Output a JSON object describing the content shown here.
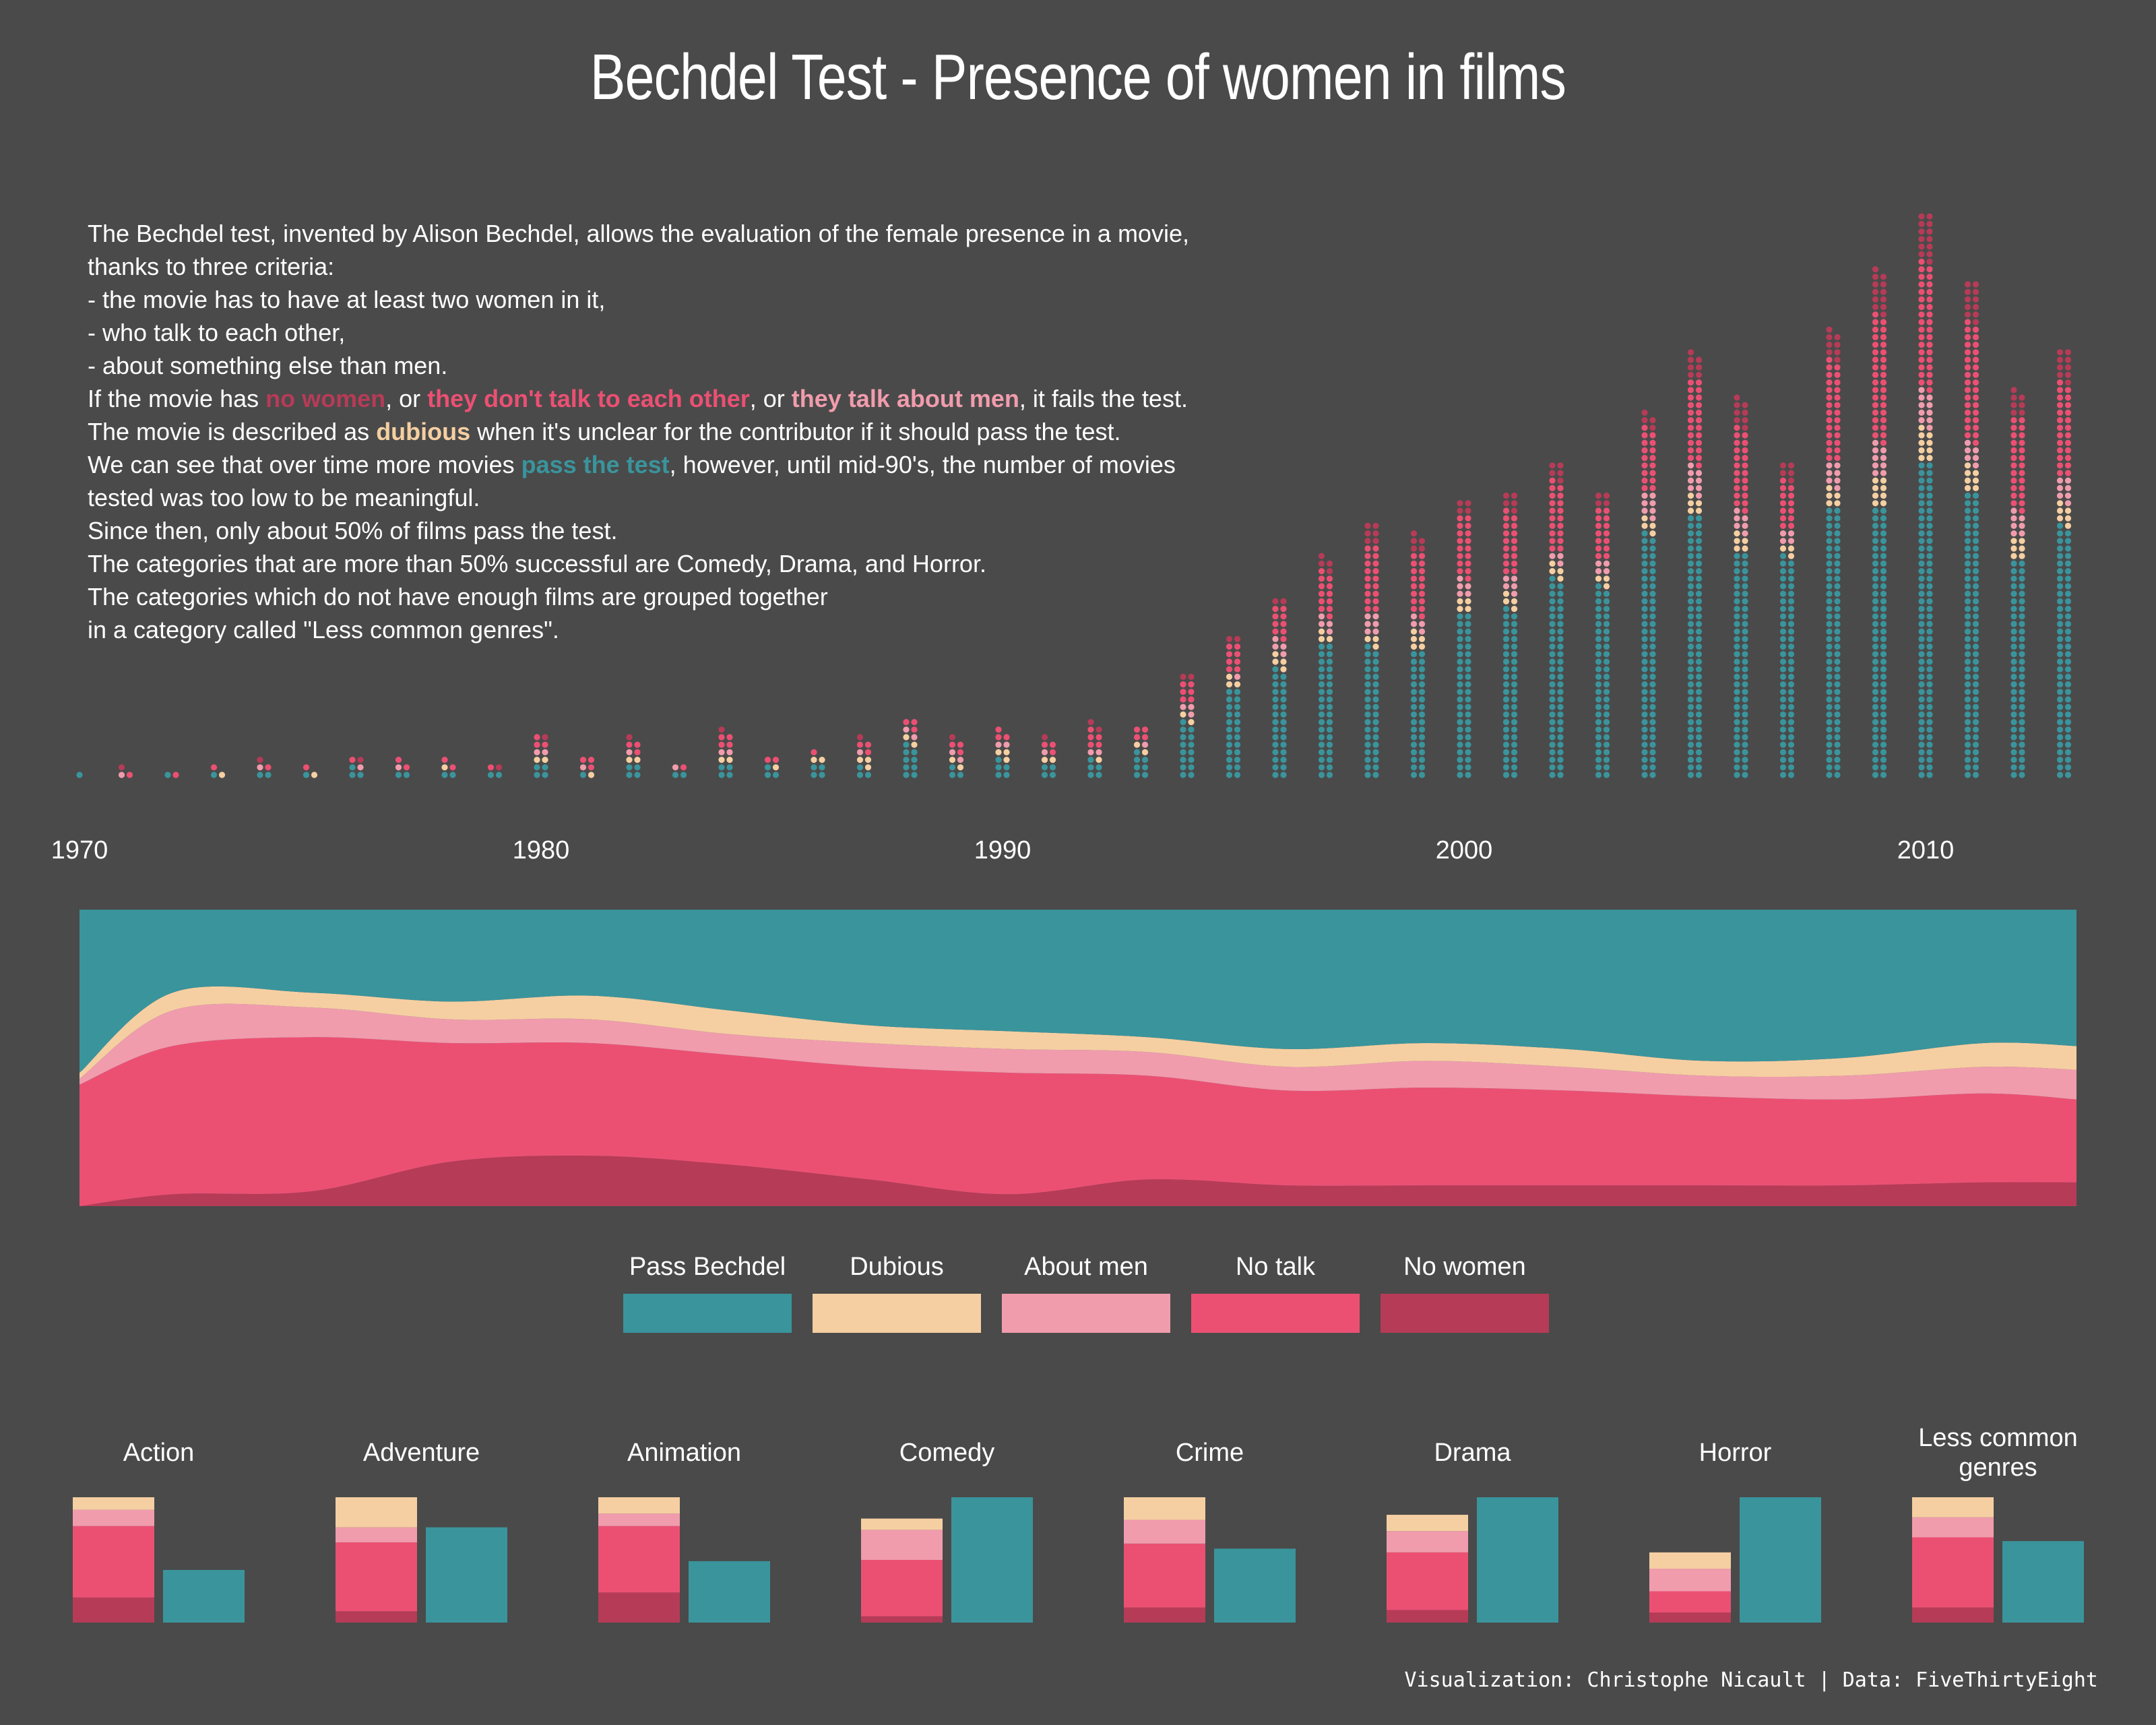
{
  "title": "Bechdel Test - Presence of women in films",
  "intro": {
    "l1": "The Bechdel test, invented by Alison Bechdel, allows the evaluation of the female presence in a movie,",
    "l2": "thanks to three criteria:",
    "l3": "- the movie has to have at least two women in it,",
    "l4": "- who talk to each other,",
    "l5": "- about something else than men.",
    "l6a": "If the movie has ",
    "l6_nowomen": "no women",
    "l6b": ", or ",
    "l6_notalk": "they don't talk to each other",
    "l6c": ", or ",
    "l6_men": "they talk about men",
    "l6d": ", it fails the test.",
    "l7a": "The movie is described as ",
    "l7_dubious": "dubious",
    "l7b": " when it's unclear for the contributor if it should pass the test.",
    "l8a": "We can see that over time more movies ",
    "l8_pass": "pass the test",
    "l8b": ", however, until mid-90's, the number of movies",
    "l9": "tested was too low to be meaningful.",
    "l10": "Since then, only about 50% of films pass the test.",
    "l11": "The categories that are more than 50% successful are Comedy, Drama, and Horror.",
    "l12": "The categories which do not have enough films are grouped together",
    "l13": "in a category called \"Less common genres\"."
  },
  "colors": {
    "background": "#4a4a4a",
    "pass": "#3a949c",
    "dubious": "#f5cfa2",
    "men": "#f09cad",
    "notalk": "#eb5073",
    "nowomen": "#b63b57"
  },
  "legend": [
    {
      "key": "pass",
      "label": "Pass Bechdel"
    },
    {
      "key": "dubious",
      "label": "Dubious"
    },
    {
      "key": "men",
      "label": "About men"
    },
    {
      "key": "notalk",
      "label": "No talk"
    },
    {
      "key": "nowomen",
      "label": "No women"
    }
  ],
  "chart_data": [
    {
      "type": "dot-column",
      "title": "",
      "x_label": "",
      "x_ticks": [
        "1970",
        "1980",
        "1990",
        "2000",
        "2010"
      ],
      "years": [
        1970,
        1971,
        1972,
        1973,
        1974,
        1975,
        1976,
        1977,
        1978,
        1979,
        1980,
        1981,
        1982,
        1983,
        1984,
        1985,
        1986,
        1987,
        1988,
        1989,
        1990,
        1991,
        1992,
        1993,
        1994,
        1995,
        1996,
        1997,
        1998,
        1999,
        2000,
        2001,
        2002,
        2003,
        2004,
        2005,
        2006,
        2007,
        2008,
        2009,
        2010,
        2011,
        2012,
        2013
      ],
      "series": [
        {
          "key": "pass",
          "name": "Pass Bechdel",
          "values": [
            1,
            0,
            1,
            1,
            2,
            1,
            3,
            2,
            2,
            2,
            4,
            1,
            4,
            2,
            4,
            3,
            4,
            3,
            9,
            3,
            5,
            4,
            5,
            7,
            15,
            24,
            29,
            36,
            35,
            34,
            44,
            45,
            53,
            51,
            65,
            70,
            60,
            59,
            72,
            72,
            84,
            76,
            58,
            67
          ]
        },
        {
          "key": "dubious",
          "name": "Dubious",
          "values": [
            0,
            0,
            0,
            1,
            0,
            1,
            0,
            0,
            1,
            0,
            2,
            1,
            2,
            0,
            2,
            1,
            2,
            3,
            2,
            2,
            3,
            2,
            1,
            2,
            2,
            3,
            4,
            3,
            3,
            5,
            4,
            4,
            4,
            3,
            4,
            5,
            5,
            3,
            5,
            8,
            9,
            7,
            6,
            6
          ]
        },
        {
          "key": "men",
          "name": "About men",
          "values": [
            0,
            1,
            0,
            0,
            1,
            0,
            1,
            1,
            0,
            0,
            2,
            1,
            1,
            1,
            2,
            0,
            0,
            1,
            2,
            2,
            2,
            1,
            2,
            1,
            3,
            1,
            4,
            4,
            6,
            4,
            5,
            5,
            3,
            4,
            7,
            8,
            6,
            4,
            7,
            9,
            10,
            6,
            7,
            7
          ]
        },
        {
          "key": "notalk",
          "name": "No talk",
          "values": [
            0,
            1,
            1,
            1,
            1,
            1,
            1,
            2,
            2,
            1,
            3,
            3,
            3,
            1,
            4,
            2,
            1,
            3,
            3,
            3,
            3,
            3,
            5,
            4,
            6,
            8,
            9,
            12,
            18,
            17,
            17,
            17,
            19,
            14,
            17,
            23,
            22,
            13,
            27,
            34,
            34,
            32,
            25,
            25
          ]
        },
        {
          "key": "nowomen",
          "name": "No women",
          "values": [
            0,
            1,
            0,
            0,
            1,
            0,
            1,
            0,
            0,
            1,
            1,
            0,
            1,
            0,
            1,
            0,
            0,
            1,
            0,
            1,
            0,
            1,
            2,
            0,
            2,
            2,
            2,
            4,
            6,
            5,
            4,
            5,
            5,
            4,
            4,
            7,
            8,
            5,
            8,
            12,
            13,
            11,
            7,
            9
          ]
        }
      ]
    },
    {
      "type": "area",
      "title": "",
      "stacked": "normalized",
      "x": [
        1970,
        1972,
        1975,
        1978,
        1981,
        1984,
        1987,
        1990,
        1993,
        1996,
        1999,
        2002,
        2005,
        2008,
        2011,
        2013
      ],
      "series": [
        {
          "key": "pass",
          "name": "Pass Bechdel",
          "values": [
            0.55,
            0.28,
            0.28,
            0.31,
            0.29,
            0.34,
            0.39,
            0.41,
            0.43,
            0.47,
            0.45,
            0.47,
            0.51,
            0.5,
            0.45,
            0.46
          ]
        },
        {
          "key": "dubious",
          "name": "Dubious",
          "values": [
            0.02,
            0.06,
            0.05,
            0.06,
            0.08,
            0.08,
            0.06,
            0.06,
            0.05,
            0.06,
            0.06,
            0.06,
            0.05,
            0.06,
            0.08,
            0.08
          ]
        },
        {
          "key": "men",
          "name": "About men",
          "values": [
            0.02,
            0.12,
            0.1,
            0.08,
            0.08,
            0.07,
            0.08,
            0.08,
            0.08,
            0.08,
            0.09,
            0.08,
            0.07,
            0.08,
            0.09,
            0.1
          ]
        },
        {
          "key": "notalk",
          "name": "No talk",
          "values": [
            0.41,
            0.5,
            0.52,
            0.4,
            0.38,
            0.37,
            0.38,
            0.41,
            0.35,
            0.32,
            0.33,
            0.32,
            0.3,
            0.29,
            0.3,
            0.28
          ]
        },
        {
          "key": "nowomen",
          "name": "No women",
          "values": [
            0.0,
            0.04,
            0.05,
            0.15,
            0.17,
            0.14,
            0.09,
            0.04,
            0.09,
            0.07,
            0.07,
            0.07,
            0.07,
            0.07,
            0.08,
            0.08
          ]
        }
      ]
    },
    {
      "type": "bar",
      "title": "",
      "categories": [
        "Action",
        "Adventure",
        "Animation",
        "Comedy",
        "Crime",
        "Drama",
        "Horror",
        "Less common genres"
      ],
      "series": [
        {
          "key": "nowomen",
          "name": "No women",
          "values": [
            0.2,
            0.09,
            0.24,
            0.05,
            0.12,
            0.1,
            0.08,
            0.12
          ]
        },
        {
          "key": "notalk",
          "name": "No talk",
          "values": [
            0.57,
            0.55,
            0.53,
            0.45,
            0.51,
            0.46,
            0.17,
            0.56
          ]
        },
        {
          "key": "men",
          "name": "About men",
          "values": [
            0.13,
            0.12,
            0.1,
            0.24,
            0.19,
            0.17,
            0.18,
            0.16
          ]
        },
        {
          "key": "dubious",
          "name": "Dubious",
          "values": [
            0.1,
            0.24,
            0.13,
            0.09,
            0.18,
            0.13,
            0.13,
            0.16
          ]
        },
        {
          "key": "pass",
          "name": "Pass Bechdel",
          "values": [
            0.42,
            0.76,
            0.49,
            1.0,
            0.59,
            1.0,
            1.0,
            0.65
          ]
        }
      ]
    }
  ],
  "credit": "Visualization: Christophe Nicault | Data: FiveThirtyEight"
}
